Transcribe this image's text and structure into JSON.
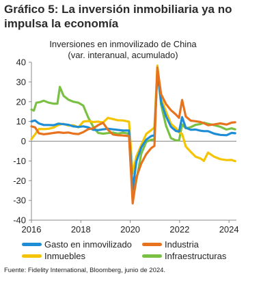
{
  "figure": {
    "title": "Gráfico 5: La inversión inmobiliaria ya no impulsa la economía",
    "source": "Fuente: Fidelity International, Bloomberg, junio de 2024."
  },
  "colors": {
    "gasto": "#1f8dd6",
    "industria": "#e8731e",
    "inmuebles": "#f5c400",
    "infra": "#79c043",
    "axis": "#888888"
  },
  "chart_data": {
    "type": "line",
    "title": "Inversiones en inmovilizado de China",
    "subtitle": "(var. interanual, acumulado)",
    "xlabel": "",
    "ylabel": "",
    "xlim": [
      2016,
      2024.3
    ],
    "ylim": [
      -40,
      40
    ],
    "x_ticks": [
      "2016",
      "2018",
      "2020",
      "2022",
      "2024"
    ],
    "y_ticks": [
      "40",
      "30",
      "20",
      "10",
      "0",
      "-10",
      "-20",
      "-30",
      "-40"
    ],
    "grid": false,
    "legend": "bottom",
    "series": [
      {
        "name": "Gasto en inmovilizado",
        "color_key": "gasto",
        "x": [
          2016.0,
          2016.15,
          2016.3,
          2016.5,
          2016.7,
          2016.9,
          2017.1,
          2017.3,
          2017.5,
          2017.7,
          2017.9,
          2018.1,
          2018.3,
          2018.5,
          2018.7,
          2018.9,
          2019.1,
          2019.3,
          2019.5,
          2019.7,
          2019.95,
          2020.1,
          2020.25,
          2020.45,
          2020.65,
          2020.85,
          2020.98,
          2021.1,
          2021.25,
          2021.45,
          2021.65,
          2021.85,
          2021.98,
          2022.1,
          2022.25,
          2022.45,
          2022.65,
          2022.85,
          2022.98,
          2023.15,
          2023.4,
          2023.65,
          2023.9,
          2024.1,
          2024.25
        ],
        "y": [
          10,
          10.5,
          9,
          8.2,
          8.2,
          8.1,
          8.9,
          8.6,
          8.3,
          7.5,
          7.2,
          7.5,
          7,
          5.8,
          5.6,
          6,
          6.3,
          6,
          5.7,
          5.4,
          5.4,
          -24.5,
          -10.3,
          -3.1,
          0.8,
          2.6,
          2.9,
          35,
          19.9,
          12.6,
          7.3,
          5.2,
          4.9,
          12.2,
          6.8,
          5.8,
          5.9,
          5.3,
          5.1,
          5.1,
          3.8,
          3.2,
          3.0,
          4.2,
          4.0
        ]
      },
      {
        "name": "Industria",
        "color_key": "industria",
        "x": [
          2016.0,
          2016.15,
          2016.3,
          2016.5,
          2016.7,
          2016.9,
          2017.1,
          2017.3,
          2017.5,
          2017.7,
          2017.9,
          2018.1,
          2018.3,
          2018.5,
          2018.7,
          2018.9,
          2019.1,
          2019.3,
          2019.5,
          2019.7,
          2019.95,
          2020.1,
          2020.25,
          2020.45,
          2020.65,
          2020.85,
          2020.98,
          2021.1,
          2021.25,
          2021.45,
          2021.65,
          2021.85,
          2021.98,
          2022.1,
          2022.25,
          2022.45,
          2022.65,
          2022.85,
          2022.98,
          2023.15,
          2023.4,
          2023.65,
          2023.9,
          2024.1,
          2024.25
        ],
        "y": [
          7.5,
          7,
          4,
          3.5,
          3.8,
          4.2,
          4.5,
          4.2,
          4.4,
          3.8,
          3.6,
          4.6,
          6.1,
          6.5,
          8.1,
          9.3,
          5.8,
          3.4,
          3.0,
          2.9,
          2.6,
          -31.5,
          -18.3,
          -11.3,
          -6.5,
          -3.5,
          -2.4,
          37.3,
          23.8,
          18.8,
          15.7,
          13.5,
          11.8,
          20.9,
          12.5,
          10.4,
          10.1,
          9.7,
          9.1,
          8.1,
          8.5,
          9.0,
          8.4,
          9.4,
          9.6
        ]
      },
      {
        "name": "Inmuebles",
        "color_key": "inmuebles",
        "x": [
          2016.0,
          2016.15,
          2016.3,
          2016.5,
          2016.7,
          2016.9,
          2017.1,
          2017.3,
          2017.5,
          2017.7,
          2017.9,
          2018.1,
          2018.3,
          2018.5,
          2018.7,
          2018.9,
          2019.1,
          2019.3,
          2019.5,
          2019.7,
          2019.95,
          2020.1,
          2020.25,
          2020.45,
          2020.65,
          2020.85,
          2020.98,
          2021.1,
          2021.25,
          2021.45,
          2021.65,
          2021.85,
          2021.98,
          2022.1,
          2022.25,
          2022.45,
          2022.65,
          2022.85,
          2022.98,
          2023.15,
          2023.4,
          2023.65,
          2023.9,
          2024.1,
          2024.25
        ],
        "y": [
          1,
          3.5,
          6.2,
          6.1,
          6.3,
          6.9,
          8.3,
          8.8,
          7.9,
          8.1,
          7,
          9.9,
          10.2,
          9.7,
          9.9,
          9.5,
          11.8,
          11.2,
          10.6,
          10.5,
          9.9,
          -16.3,
          -7.7,
          -1.9,
          3.7,
          5.6,
          7,
          38.3,
          21.6,
          15,
          8.8,
          6.6,
          4.4,
          3.7,
          -2.7,
          -5.4,
          -7.9,
          -8.8,
          -10,
          -5.8,
          -7.9,
          -9.1,
          -9.6,
          -9.5,
          -10.1
        ]
      },
      {
        "name": "Infraestructuras",
        "color_key": "infra",
        "x": [
          2016.0,
          2016.1,
          2016.2,
          2016.35,
          2016.5,
          2016.7,
          2016.9,
          2017.05,
          2017.15,
          2017.3,
          2017.5,
          2017.7,
          2017.9,
          2018.1,
          2018.3,
          2018.5,
          2018.7,
          2018.9,
          2019.1,
          2019.3,
          2019.5,
          2019.7,
          2019.95,
          2020.1,
          2020.25,
          2020.45,
          2020.65,
          2020.85,
          2020.98,
          2021.1,
          2021.25,
          2021.45,
          2021.65,
          2021.85,
          2021.98,
          2022.1,
          2022.25,
          2022.45,
          2022.65,
          2022.85,
          2022.98,
          2023.15,
          2023.4,
          2023.65,
          2023.9,
          2024.1,
          2024.25
        ],
        "y": [
          16,
          15.5,
          19.5,
          19.8,
          20.5,
          19.5,
          19,
          19,
          27.5,
          23,
          21,
          20,
          19.5,
          18,
          12,
          7.3,
          4.2,
          3.8,
          4.1,
          4.4,
          3.8,
          4.3,
          3.8,
          -30.3,
          -19.7,
          -6.3,
          -0.3,
          0.7,
          0.9,
          36.6,
          18.4,
          7.8,
          1.5,
          0.4,
          0.4,
          8.5,
          6.5,
          7.1,
          8.3,
          8.7,
          9.4,
          8.8,
          8.1,
          7.3,
          5.9,
          6.5,
          6.0
        ]
      }
    ]
  }
}
